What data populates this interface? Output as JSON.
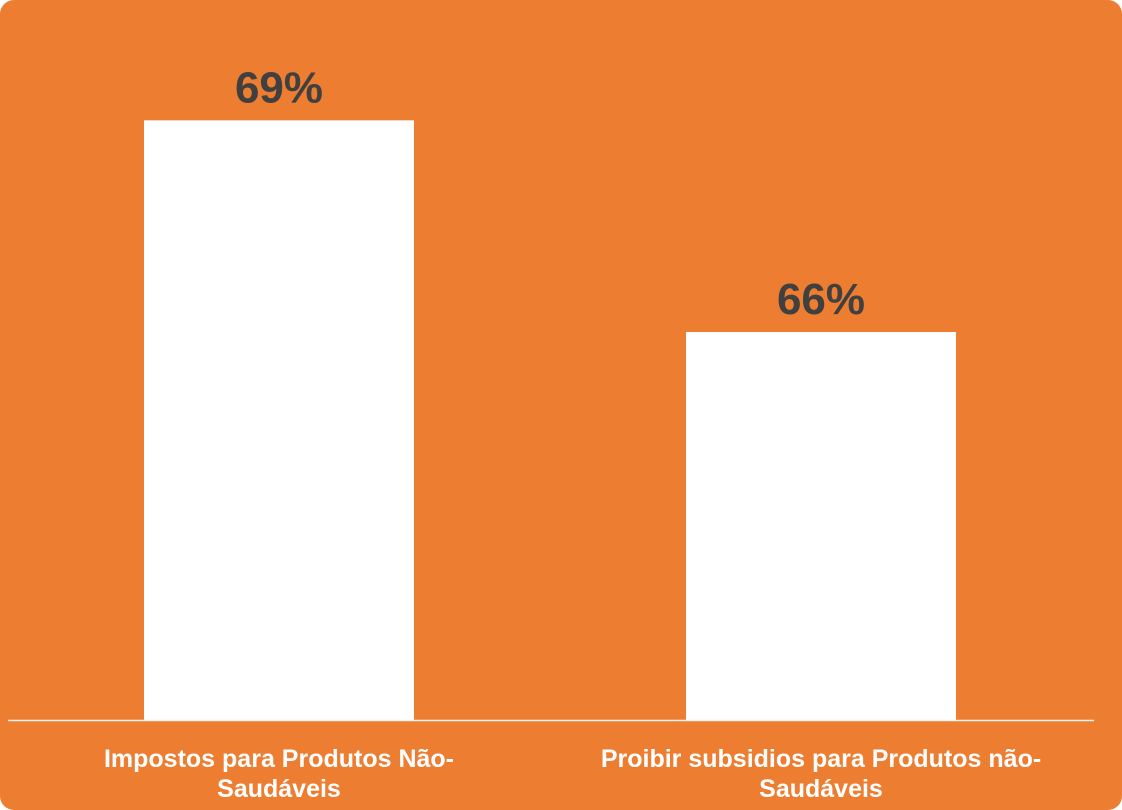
{
  "chart_data": {
    "type": "bar",
    "categories": [
      [
        "Impostos para Produtos Não-",
        "Saudáveis"
      ],
      [
        "Proibir subsidios para Produtos não-",
        "Saudáveis"
      ]
    ],
    "values": [
      69,
      66
    ],
    "data_labels": [
      "69%",
      "66%"
    ],
    "ylim": [
      60.5,
      69.6
    ],
    "grid": false,
    "legend": "none",
    "colors": {
      "background": "#ED7D31",
      "bar": "#FFFFFF",
      "axis": "#F2F2F2",
      "data_label": "#404040",
      "category_label": "#FFFFFF"
    }
  }
}
